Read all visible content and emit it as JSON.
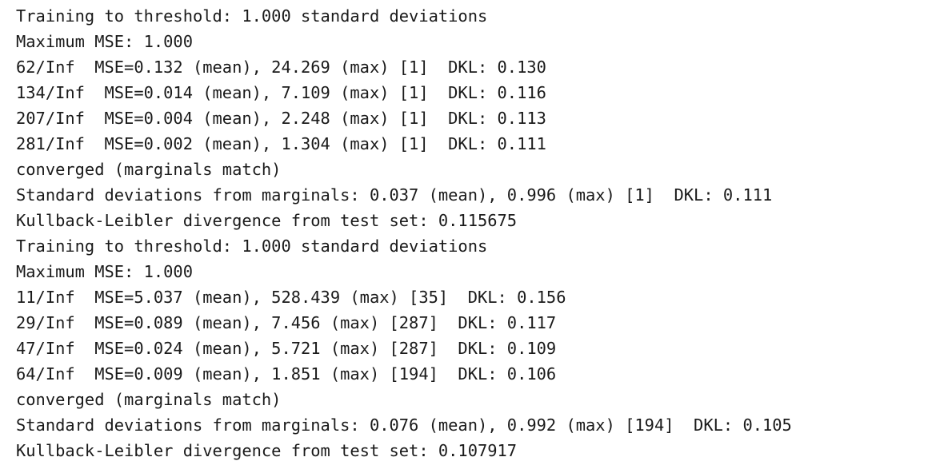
{
  "console": {
    "text_color": "#1a1a1a",
    "background_color": "#ffffff",
    "lines": [
      "Training to threshold: 1.000 standard deviations",
      "Maximum MSE: 1.000",
      "62/Inf  MSE=0.132 (mean), 24.269 (max) [1]  DKL: 0.130",
      "134/Inf  MSE=0.014 (mean), 7.109 (max) [1]  DKL: 0.116",
      "207/Inf  MSE=0.004 (mean), 2.248 (max) [1]  DKL: 0.113",
      "281/Inf  MSE=0.002 (mean), 1.304 (max) [1]  DKL: 0.111",
      "converged (marginals match)",
      "Standard deviations from marginals: 0.037 (mean), 0.996 (max) [1]  DKL: 0.111",
      "Kullback-Leibler divergence from test set: 0.115675",
      "Training to threshold: 1.000 standard deviations",
      "Maximum MSE: 1.000",
      "11/Inf  MSE=5.037 (mean), 528.439 (max) [35]  DKL: 0.156",
      "29/Inf  MSE=0.089 (mean), 7.456 (max) [287]  DKL: 0.117",
      "47/Inf  MSE=0.024 (mean), 5.721 (max) [287]  DKL: 0.109",
      "64/Inf  MSE=0.009 (mean), 1.851 (max) [194]  DKL: 0.106",
      "converged (marginals match)",
      "Standard deviations from marginals: 0.076 (mean), 0.992 (max) [194]  DKL: 0.105",
      "Kullback-Leibler divergence from test set: 0.107917"
    ]
  }
}
